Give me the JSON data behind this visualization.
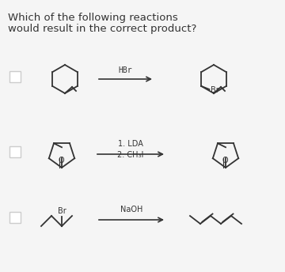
{
  "title_line1": "Which of the following reactions",
  "title_line2": "would result in the correct product?",
  "background": "#f5f5f5",
  "text_color": "#333333",
  "row1_reagent": "HBr",
  "row2_reagent1": "1. LDA",
  "row2_reagent2": "2. CH₃I",
  "row3_reagent": "NaOH",
  "checkbox_color": "#cccccc",
  "structure_color": "#333333"
}
